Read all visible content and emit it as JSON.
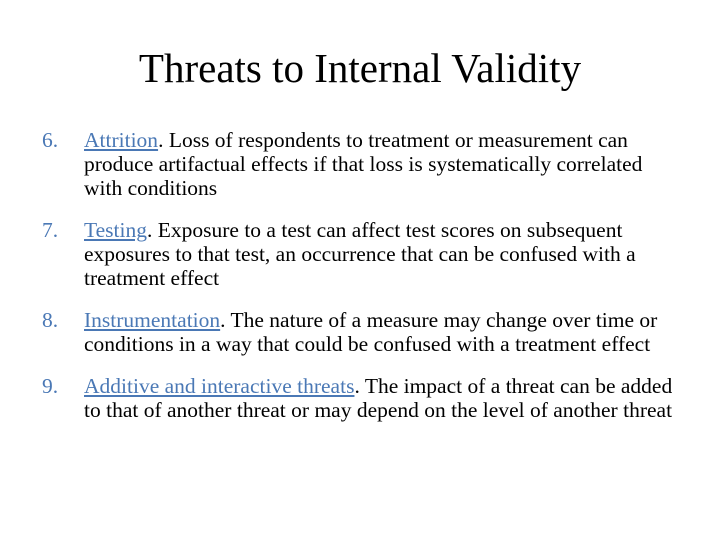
{
  "slide": {
    "title": "Threats to Internal Validity",
    "items": [
      {
        "number": "6.",
        "term": "Attrition",
        "text": ". Loss of respondents to treatment or measurement can produce artifactual effects if that loss is systematically correlated with conditions"
      },
      {
        "number": "7.",
        "term": "Testing",
        "text": ". Exposure to a test can affect test scores on subsequent exposures to that test, an occurrence that can be confused with a treatment effect"
      },
      {
        "number": "8.",
        "term": "Instrumentation",
        "text": ". The nature of a measure may change over time or conditions in a way that could be confused with a treatment effect"
      },
      {
        "number": "9.",
        "term": "Additive and interactive threats",
        "text": ". The impact of a threat can be added to that of another threat or may depend on the level of another threat"
      }
    ],
    "colors": {
      "link": "#4a78b5",
      "text": "#000000",
      "background": "#ffffff"
    }
  }
}
